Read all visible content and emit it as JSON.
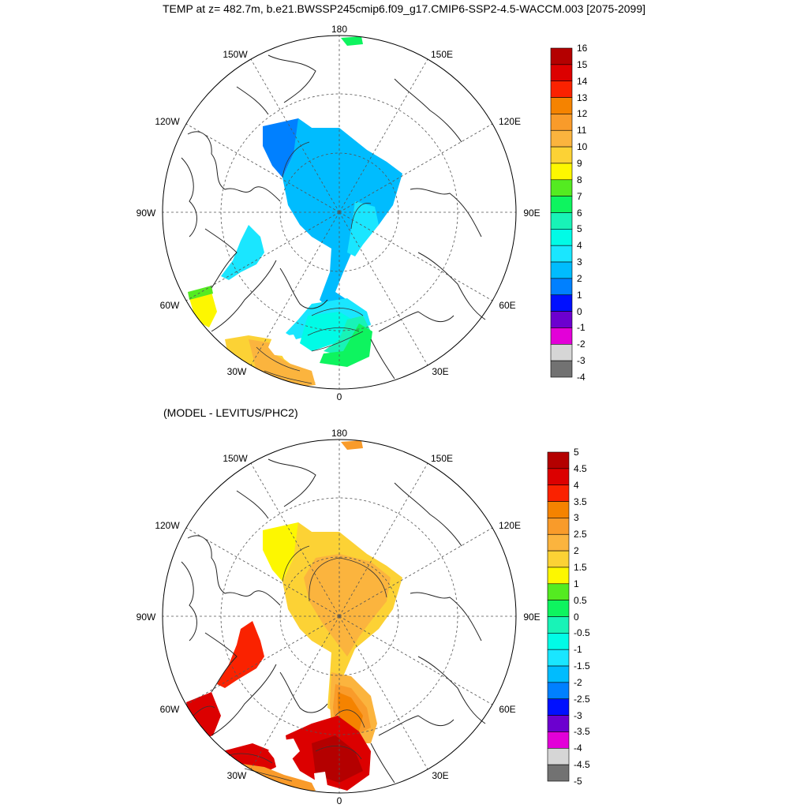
{
  "title": "TEMP at z= 482.7m, b.e21.BWSSP245cmip6.f09_g17.CMIP6-SSP2-4.5-WACCM.003 [2075-2099]",
  "subtitle": "(MODEL - LEVITUS/PHC2)",
  "map_labels": {
    "n180": "180",
    "w150": "150W",
    "e150": "150E",
    "w120": "120W",
    "e120": "120E",
    "w90": "90W",
    "e90": "90E",
    "w60": "60W",
    "e60": "60E",
    "w30": "30W",
    "e30": "30E",
    "s0": "0"
  },
  "colorbar_top": {
    "labels": [
      "16",
      "15",
      "14",
      "13",
      "12",
      "11",
      "10",
      "9",
      "8",
      "7",
      "6",
      "5",
      "4",
      "3",
      "2",
      "1",
      "0",
      "-1",
      "-2",
      "-3",
      "-4"
    ],
    "colors": [
      "#b40000",
      "#dc0000",
      "#fa2200",
      "#f58300",
      "#f99b2a",
      "#fbb43e",
      "#fcd235",
      "#fdf700",
      "#54eb21",
      "#0ef45f",
      "#18f3b7",
      "#01fbe6",
      "#1ae6ff",
      "#00bcfe",
      "#0080ff",
      "#0010ff",
      "#6c00cf",
      "#e300d8",
      "#d6d6d6",
      "#727272"
    ]
  },
  "colorbar_bottom": {
    "labels": [
      "5",
      "4.5",
      "4",
      "3.5",
      "3",
      "2.5",
      "2",
      "1.5",
      "1",
      "0.5",
      "0",
      "-0.5",
      "-1",
      "-1.5",
      "-2",
      "-2.5",
      "-3",
      "-3.5",
      "-4",
      "-4.5",
      "-5"
    ],
    "colors": [
      "#b40000",
      "#dc0000",
      "#fa2200",
      "#f58300",
      "#f99b2a",
      "#fbb43e",
      "#fcd235",
      "#fdf700",
      "#54eb21",
      "#0ef45f",
      "#18f3b7",
      "#01fbe6",
      "#1ae6ff",
      "#00bcfe",
      "#0080ff",
      "#0010ff",
      "#6c00cf",
      "#e300d8",
      "#d6d6d6",
      "#727272"
    ]
  }
}
